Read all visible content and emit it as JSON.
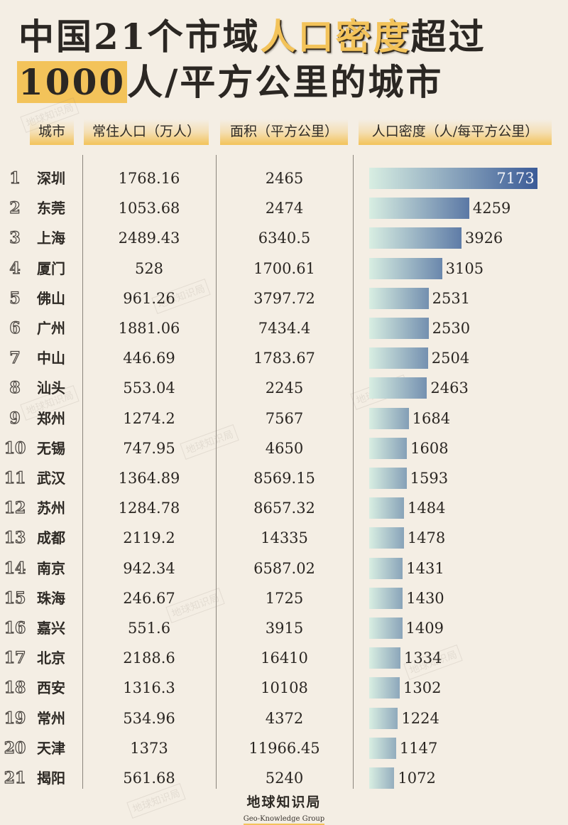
{
  "title": {
    "line1_pre": "中国21个市域",
    "line1_highlight": "人口密度",
    "line1_post": "超过",
    "line2_highlight": "1000",
    "line2_post": "人/平方公里的城市"
  },
  "headers": {
    "city": "城市",
    "population": "常住人口（万人）",
    "area": "面积（平方公里）",
    "density": "人口密度（人/每平方公里）"
  },
  "rows": [
    {
      "rank": "1",
      "city": "深圳",
      "population": "1768.16",
      "area": "2465",
      "density": "7173"
    },
    {
      "rank": "2",
      "city": "东莞",
      "population": "1053.68",
      "area": "2474",
      "density": "4259"
    },
    {
      "rank": "3",
      "city": "上海",
      "population": "2489.43",
      "area": "6340.5",
      "density": "3926"
    },
    {
      "rank": "4",
      "city": "厦门",
      "population": "528",
      "area": "1700.61",
      "density": "3105"
    },
    {
      "rank": "5",
      "city": "佛山",
      "population": "961.26",
      "area": "3797.72",
      "density": "2531"
    },
    {
      "rank": "6",
      "city": "广州",
      "population": "1881.06",
      "area": "7434.4",
      "density": "2530"
    },
    {
      "rank": "7",
      "city": "中山",
      "population": "446.69",
      "area": "1783.67",
      "density": "2504"
    },
    {
      "rank": "8",
      "city": "汕头",
      "population": "553.04",
      "area": "2245",
      "density": "2463"
    },
    {
      "rank": "9",
      "city": "郑州",
      "population": "1274.2",
      "area": "7567",
      "density": "1684"
    },
    {
      "rank": "10",
      "city": "无锡",
      "population": "747.95",
      "area": "4650",
      "density": "1608"
    },
    {
      "rank": "11",
      "city": "武汉",
      "population": "1364.89",
      "area": "8569.15",
      "density": "1593"
    },
    {
      "rank": "12",
      "city": "苏州",
      "population": "1284.78",
      "area": "8657.32",
      "density": "1484"
    },
    {
      "rank": "13",
      "city": "成都",
      "population": "2119.2",
      "area": "14335",
      "density": "1478"
    },
    {
      "rank": "14",
      "city": "南京",
      "population": "942.34",
      "area": "6587.02",
      "density": "1431"
    },
    {
      "rank": "15",
      "city": "珠海",
      "population": "246.67",
      "area": "1725",
      "density": "1430"
    },
    {
      "rank": "16",
      "city": "嘉兴",
      "population": "551.6",
      "area": "3915",
      "density": "1409"
    },
    {
      "rank": "17",
      "city": "北京",
      "population": "2188.6",
      "area": "16410",
      "density": "1334"
    },
    {
      "rank": "18",
      "city": "西安",
      "population": "1316.3",
      "area": "10108",
      "density": "1302"
    },
    {
      "rank": "19",
      "city": "常州",
      "population": "534.96",
      "area": "4372",
      "density": "1224"
    },
    {
      "rank": "20",
      "city": "天津",
      "population": "1373",
      "area": "11966.45",
      "density": "1147"
    },
    {
      "rank": "21",
      "city": "揭阳",
      "population": "561.68",
      "area": "5240",
      "density": "1072"
    }
  ],
  "footer": {
    "brand_cn": "地球知识局",
    "brand_en": "Geo-Knowledge Group"
  },
  "watermark": "地球知识局",
  "colors": {
    "background": "#f4eee4",
    "accent_gold": "#f3c35a",
    "bar_start": "#d6ece0",
    "bar_end_dark": "#3b5b97"
  },
  "chart_data": {
    "type": "bar",
    "orientation": "horizontal",
    "title": "中国21个市域人口密度超过1000人/平方公里的城市",
    "xlabel": "人口密度（人/每平方公里）",
    "ylabel": "城市",
    "categories": [
      "深圳",
      "东莞",
      "上海",
      "厦门",
      "佛山",
      "广州",
      "中山",
      "汕头",
      "郑州",
      "无锡",
      "武汉",
      "苏州",
      "成都",
      "南京",
      "珠海",
      "嘉兴",
      "北京",
      "西安",
      "常州",
      "天津",
      "揭阳"
    ],
    "series": [
      {
        "name": "人口密度（人/每平方公里）",
        "values": [
          7173,
          4259,
          3926,
          3105,
          2531,
          2530,
          2504,
          2463,
          1684,
          1608,
          1593,
          1484,
          1478,
          1431,
          1430,
          1409,
          1334,
          1302,
          1224,
          1147,
          1072
        ]
      },
      {
        "name": "常住人口（万人）",
        "values": [
          1768.16,
          1053.68,
          2489.43,
          528,
          961.26,
          1881.06,
          446.69,
          553.04,
          1274.2,
          747.95,
          1364.89,
          1284.78,
          2119.2,
          942.34,
          246.67,
          551.6,
          2188.6,
          1316.3,
          534.96,
          1373,
          561.68
        ]
      },
      {
        "name": "面积（平方公里）",
        "values": [
          2465,
          2474,
          6340.5,
          1700.61,
          3797.72,
          7434.4,
          1783.67,
          2245,
          7567,
          4650,
          8569.15,
          8657.32,
          14335,
          6587.02,
          1725,
          3915,
          16410,
          10108,
          4372,
          11966.45,
          5240
        ]
      }
    ],
    "grid": false,
    "legend": "none",
    "data_labels": true
  }
}
